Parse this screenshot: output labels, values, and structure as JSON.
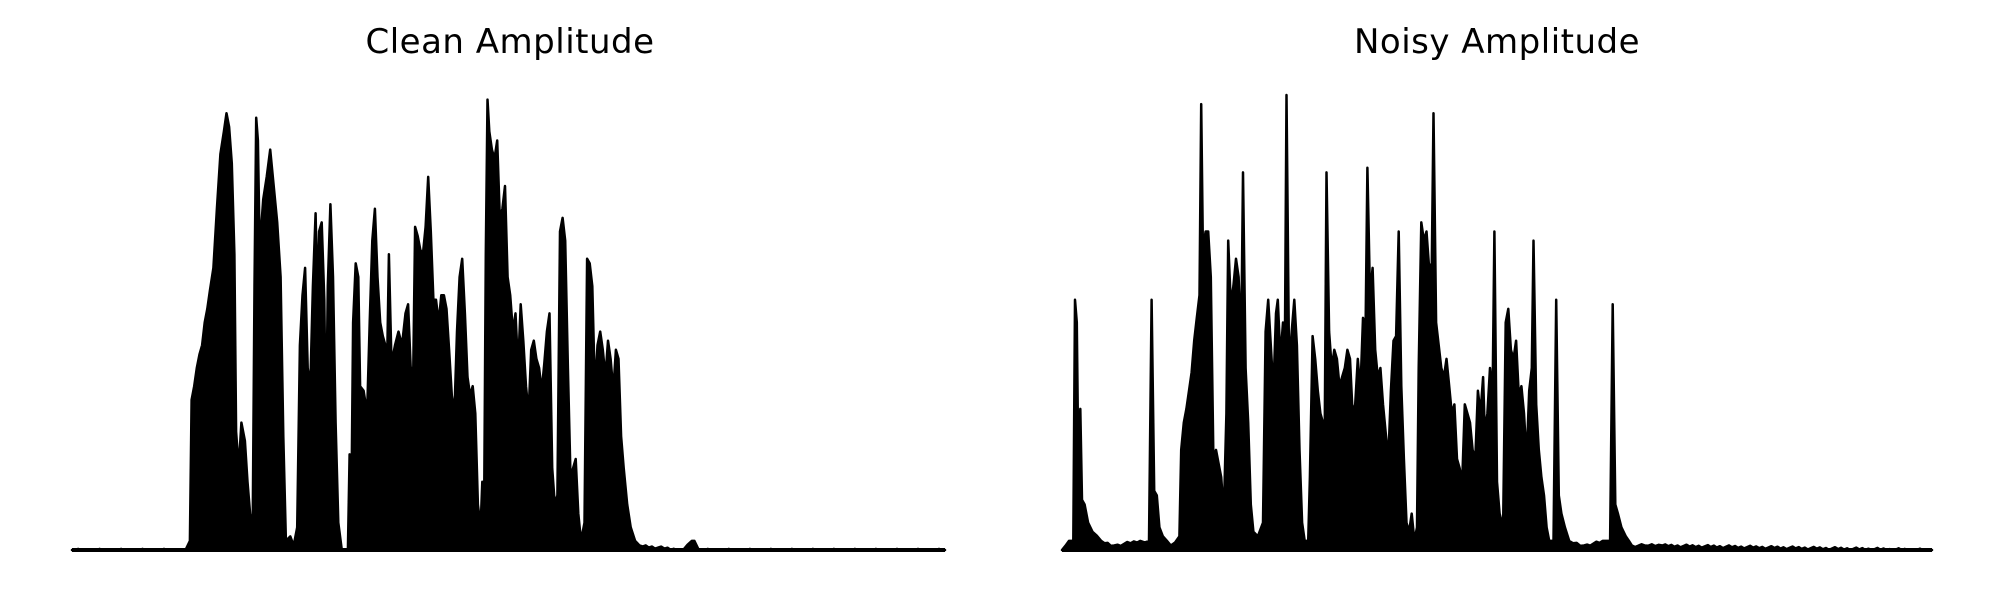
{
  "chart_data": [
    {
      "type": "area",
      "title": "Clean Amplitude",
      "xlabel": "",
      "ylabel": "",
      "axes_visible": false,
      "grid": false,
      "color": "#000000",
      "x_range": [
        0,
        1
      ],
      "ylim": [
        0,
        1
      ],
      "envelope": [
        [
          0.0,
          0.0
        ],
        [
          0.13,
          0.0
        ],
        [
          0.135,
          0.02
        ],
        [
          0.137,
          0.33
        ],
        [
          0.14,
          0.36
        ],
        [
          0.143,
          0.4
        ],
        [
          0.146,
          0.43
        ],
        [
          0.149,
          0.45
        ],
        [
          0.152,
          0.5
        ],
        [
          0.155,
          0.53
        ],
        [
          0.158,
          0.57
        ],
        [
          0.162,
          0.62
        ],
        [
          0.166,
          0.75
        ],
        [
          0.17,
          0.87
        ],
        [
          0.174,
          0.92
        ],
        [
          0.177,
          0.96
        ],
        [
          0.18,
          0.93
        ],
        [
          0.183,
          0.85
        ],
        [
          0.186,
          0.65
        ],
        [
          0.188,
          0.26
        ],
        [
          0.191,
          0.18
        ],
        [
          0.194,
          0.28
        ],
        [
          0.198,
          0.24
        ],
        [
          0.201,
          0.15
        ],
        [
          0.204,
          0.08
        ],
        [
          0.207,
          0.05
        ],
        [
          0.209,
          0.58
        ],
        [
          0.211,
          0.95
        ],
        [
          0.213,
          0.9
        ],
        [
          0.215,
          0.66
        ],
        [
          0.219,
          0.77
        ],
        [
          0.223,
          0.82
        ],
        [
          0.227,
          0.88
        ],
        [
          0.231,
          0.8
        ],
        [
          0.235,
          0.72
        ],
        [
          0.239,
          0.6
        ],
        [
          0.242,
          0.25
        ],
        [
          0.245,
          0.02
        ],
        [
          0.25,
          0.03
        ],
        [
          0.254,
          0.01
        ],
        [
          0.258,
          0.05
        ],
        [
          0.261,
          0.45
        ],
        [
          0.264,
          0.56
        ],
        [
          0.267,
          0.62
        ],
        [
          0.27,
          0.4
        ],
        [
          0.273,
          0.36
        ],
        [
          0.276,
          0.58
        ],
        [
          0.279,
          0.74
        ],
        [
          0.281,
          0.55
        ],
        [
          0.283,
          0.7
        ],
        [
          0.286,
          0.72
        ],
        [
          0.289,
          0.55
        ],
        [
          0.291,
          0.25
        ],
        [
          0.293,
          0.58
        ],
        [
          0.296,
          0.76
        ],
        [
          0.299,
          0.6
        ],
        [
          0.302,
          0.28
        ],
        [
          0.305,
          0.06
        ],
        [
          0.309,
          0.0
        ],
        [
          0.316,
          0.0
        ],
        [
          0.318,
          0.21
        ],
        [
          0.32,
          0.1
        ],
        [
          0.322,
          0.5
        ],
        [
          0.325,
          0.63
        ],
        [
          0.328,
          0.6
        ],
        [
          0.33,
          0.36
        ],
        [
          0.334,
          0.35
        ],
        [
          0.338,
          0.3
        ],
        [
          0.341,
          0.5
        ],
        [
          0.344,
          0.68
        ],
        [
          0.347,
          0.75
        ],
        [
          0.35,
          0.6
        ],
        [
          0.353,
          0.5
        ],
        [
          0.356,
          0.47
        ],
        [
          0.359,
          0.45
        ],
        [
          0.361,
          0.42
        ],
        [
          0.363,
          0.65
        ],
        [
          0.366,
          0.41
        ],
        [
          0.37,
          0.45
        ],
        [
          0.374,
          0.48
        ],
        [
          0.378,
          0.45
        ],
        [
          0.382,
          0.52
        ],
        [
          0.385,
          0.54
        ],
        [
          0.388,
          0.4
        ],
        [
          0.391,
          0.4
        ],
        [
          0.393,
          0.71
        ],
        [
          0.396,
          0.69
        ],
        [
          0.399,
          0.66
        ],
        [
          0.402,
          0.65
        ],
        [
          0.405,
          0.71
        ],
        [
          0.408,
          0.82
        ],
        [
          0.411,
          0.7
        ],
        [
          0.414,
          0.55
        ],
        [
          0.417,
          0.55
        ],
        [
          0.42,
          0.5
        ],
        [
          0.423,
          0.56
        ],
        [
          0.426,
          0.56
        ],
        [
          0.429,
          0.53
        ],
        [
          0.432,
          0.44
        ],
        [
          0.435,
          0.34
        ],
        [
          0.438,
          0.3
        ],
        [
          0.441,
          0.48
        ],
        [
          0.444,
          0.6
        ],
        [
          0.447,
          0.64
        ],
        [
          0.45,
          0.52
        ],
        [
          0.453,
          0.38
        ],
        [
          0.456,
          0.34
        ],
        [
          0.459,
          0.36
        ],
        [
          0.462,
          0.3
        ],
        [
          0.465,
          0.1
        ],
        [
          0.468,
          0.05
        ],
        [
          0.47,
          0.15
        ],
        [
          0.472,
          0.08
        ],
        [
          0.474,
          0.65
        ],
        [
          0.476,
          0.99
        ],
        [
          0.478,
          0.92
        ],
        [
          0.481,
          0.88
        ],
        [
          0.484,
          0.86
        ],
        [
          0.487,
          0.9
        ],
        [
          0.49,
          0.73
        ],
        [
          0.493,
          0.75
        ],
        [
          0.496,
          0.8
        ],
        [
          0.499,
          0.6
        ],
        [
          0.502,
          0.56
        ],
        [
          0.505,
          0.48
        ],
        [
          0.508,
          0.52
        ],
        [
          0.511,
          0.4
        ],
        [
          0.514,
          0.54
        ],
        [
          0.517,
          0.46
        ],
        [
          0.52,
          0.36
        ],
        [
          0.523,
          0.3
        ],
        [
          0.526,
          0.44
        ],
        [
          0.529,
          0.46
        ],
        [
          0.532,
          0.42
        ],
        [
          0.535,
          0.4
        ],
        [
          0.538,
          0.35
        ],
        [
          0.541,
          0.41
        ],
        [
          0.544,
          0.48
        ],
        [
          0.547,
          0.52
        ],
        [
          0.55,
          0.18
        ],
        [
          0.553,
          0.1
        ],
        [
          0.556,
          0.12
        ],
        [
          0.559,
          0.7
        ],
        [
          0.562,
          0.73
        ],
        [
          0.565,
          0.68
        ],
        [
          0.568,
          0.4
        ],
        [
          0.571,
          0.16
        ],
        [
          0.574,
          0.18
        ],
        [
          0.577,
          0.2
        ],
        [
          0.58,
          0.08
        ],
        [
          0.583,
          0.02
        ],
        [
          0.587,
          0.06
        ],
        [
          0.59,
          0.64
        ],
        [
          0.593,
          0.63
        ],
        [
          0.596,
          0.58
        ],
        [
          0.599,
          0.35
        ],
        [
          0.602,
          0.45
        ],
        [
          0.605,
          0.48
        ],
        [
          0.608,
          0.44
        ],
        [
          0.611,
          0.38
        ],
        [
          0.614,
          0.46
        ],
        [
          0.617,
          0.42
        ],
        [
          0.62,
          0.35
        ],
        [
          0.623,
          0.44
        ],
        [
          0.626,
          0.42
        ],
        [
          0.629,
          0.25
        ],
        [
          0.632,
          0.18
        ],
        [
          0.636,
          0.1
        ],
        [
          0.64,
          0.05
        ],
        [
          0.645,
          0.02
        ],
        [
          0.65,
          0.01
        ],
        [
          0.7,
          0.0
        ],
        [
          0.71,
          0.02
        ],
        [
          0.713,
          0.02
        ],
        [
          0.718,
          0.0
        ],
        [
          1.0,
          0.0
        ]
      ]
    },
    {
      "type": "area",
      "title": "Noisy Amplitude",
      "xlabel": "",
      "ylabel": "",
      "axes_visible": false,
      "grid": false,
      "color": "#000000",
      "x_range": [
        0,
        1
      ],
      "ylim": [
        0,
        1
      ],
      "envelope": [
        [
          0.0,
          0.0
        ],
        [
          0.008,
          0.02
        ],
        [
          0.013,
          0.02
        ],
        [
          0.015,
          0.55
        ],
        [
          0.017,
          0.5
        ],
        [
          0.019,
          0.15
        ],
        [
          0.021,
          0.31
        ],
        [
          0.023,
          0.11
        ],
        [
          0.026,
          0.1
        ],
        [
          0.03,
          0.06
        ],
        [
          0.035,
          0.04
        ],
        [
          0.045,
          0.02
        ],
        [
          0.06,
          0.01
        ],
        [
          0.09,
          0.02
        ],
        [
          0.1,
          0.02
        ],
        [
          0.103,
          0.55
        ],
        [
          0.106,
          0.13
        ],
        [
          0.109,
          0.12
        ],
        [
          0.112,
          0.05
        ],
        [
          0.116,
          0.03
        ],
        [
          0.125,
          0.01
        ],
        [
          0.135,
          0.03
        ],
        [
          0.137,
          0.22
        ],
        [
          0.14,
          0.28
        ],
        [
          0.143,
          0.31
        ],
        [
          0.146,
          0.35
        ],
        [
          0.149,
          0.39
        ],
        [
          0.152,
          0.46
        ],
        [
          0.155,
          0.51
        ],
        [
          0.158,
          0.56
        ],
        [
          0.16,
          0.98
        ],
        [
          0.162,
          0.66
        ],
        [
          0.165,
          0.7
        ],
        [
          0.168,
          0.7
        ],
        [
          0.171,
          0.6
        ],
        [
          0.174,
          0.2
        ],
        [
          0.177,
          0.22
        ],
        [
          0.18,
          0.19
        ],
        [
          0.183,
          0.16
        ],
        [
          0.186,
          0.08
        ],
        [
          0.189,
          0.3
        ],
        [
          0.191,
          0.68
        ],
        [
          0.194,
          0.54
        ],
        [
          0.197,
          0.58
        ],
        [
          0.2,
          0.64
        ],
        [
          0.203,
          0.6
        ],
        [
          0.206,
          0.45
        ],
        [
          0.208,
          0.83
        ],
        [
          0.211,
          0.4
        ],
        [
          0.214,
          0.28
        ],
        [
          0.217,
          0.1
        ],
        [
          0.22,
          0.04
        ],
        [
          0.225,
          0.03
        ],
        [
          0.231,
          0.06
        ],
        [
          0.234,
          0.48
        ],
        [
          0.237,
          0.55
        ],
        [
          0.24,
          0.45
        ],
        [
          0.243,
          0.35
        ],
        [
          0.246,
          0.52
        ],
        [
          0.248,
          0.55
        ],
        [
          0.251,
          0.42
        ],
        [
          0.254,
          0.5
        ],
        [
          0.256,
          0.38
        ],
        [
          0.258,
          1.0
        ],
        [
          0.261,
          0.4
        ],
        [
          0.264,
          0.48
        ],
        [
          0.267,
          0.55
        ],
        [
          0.27,
          0.45
        ],
        [
          0.273,
          0.22
        ],
        [
          0.276,
          0.06
        ],
        [
          0.279,
          0.02
        ],
        [
          0.283,
          0.02
        ],
        [
          0.285,
          0.16
        ],
        [
          0.288,
          0.47
        ],
        [
          0.291,
          0.42
        ],
        [
          0.294,
          0.35
        ],
        [
          0.297,
          0.3
        ],
        [
          0.3,
          0.28
        ],
        [
          0.302,
          0.25
        ],
        [
          0.304,
          0.83
        ],
        [
          0.307,
          0.48
        ],
        [
          0.31,
          0.4
        ],
        [
          0.313,
          0.44
        ],
        [
          0.316,
          0.42
        ],
        [
          0.319,
          0.36
        ],
        [
          0.322,
          0.38
        ],
        [
          0.325,
          0.4
        ],
        [
          0.328,
          0.44
        ],
        [
          0.331,
          0.42
        ],
        [
          0.334,
          0.3
        ],
        [
          0.337,
          0.32
        ],
        [
          0.34,
          0.42
        ],
        [
          0.343,
          0.35
        ],
        [
          0.346,
          0.51
        ],
        [
          0.349,
          0.49
        ],
        [
          0.351,
          0.84
        ],
        [
          0.354,
          0.56
        ],
        [
          0.357,
          0.62
        ],
        [
          0.36,
          0.44
        ],
        [
          0.363,
          0.38
        ],
        [
          0.366,
          0.4
        ],
        [
          0.369,
          0.32
        ],
        [
          0.372,
          0.26
        ],
        [
          0.375,
          0.2
        ],
        [
          0.378,
          0.35
        ],
        [
          0.381,
          0.46
        ],
        [
          0.384,
          0.47
        ],
        [
          0.387,
          0.7
        ],
        [
          0.39,
          0.36
        ],
        [
          0.393,
          0.2
        ],
        [
          0.396,
          0.06
        ],
        [
          0.399,
          0.04
        ],
        [
          0.402,
          0.08
        ],
        [
          0.405,
          0.02
        ],
        [
          0.408,
          0.05
        ],
        [
          0.41,
          0.4
        ],
        [
          0.413,
          0.72
        ],
        [
          0.416,
          0.68
        ],
        [
          0.419,
          0.7
        ],
        [
          0.422,
          0.62
        ],
        [
          0.425,
          0.63
        ],
        [
          0.427,
          0.96
        ],
        [
          0.43,
          0.5
        ],
        [
          0.433,
          0.45
        ],
        [
          0.436,
          0.4
        ],
        [
          0.439,
          0.38
        ],
        [
          0.442,
          0.42
        ],
        [
          0.445,
          0.36
        ],
        [
          0.448,
          0.3
        ],
        [
          0.451,
          0.32
        ],
        [
          0.454,
          0.2
        ],
        [
          0.457,
          0.18
        ],
        [
          0.46,
          0.15
        ],
        [
          0.463,
          0.32
        ],
        [
          0.466,
          0.3
        ],
        [
          0.469,
          0.28
        ],
        [
          0.472,
          0.22
        ],
        [
          0.475,
          0.2
        ],
        [
          0.478,
          0.35
        ],
        [
          0.481,
          0.3
        ],
        [
          0.484,
          0.38
        ],
        [
          0.486,
          0.26
        ],
        [
          0.489,
          0.3
        ],
        [
          0.492,
          0.4
        ],
        [
          0.495,
          0.34
        ],
        [
          0.497,
          0.7
        ],
        [
          0.5,
          0.15
        ],
        [
          0.503,
          0.08
        ],
        [
          0.507,
          0.05
        ],
        [
          0.51,
          0.5
        ],
        [
          0.513,
          0.53
        ],
        [
          0.516,
          0.44
        ],
        [
          0.519,
          0.42
        ],
        [
          0.522,
          0.46
        ],
        [
          0.525,
          0.34
        ],
        [
          0.528,
          0.36
        ],
        [
          0.531,
          0.3
        ],
        [
          0.534,
          0.2
        ],
        [
          0.537,
          0.35
        ],
        [
          0.54,
          0.4
        ],
        [
          0.542,
          0.68
        ],
        [
          0.545,
          0.32
        ],
        [
          0.548,
          0.22
        ],
        [
          0.551,
          0.16
        ],
        [
          0.554,
          0.12
        ],
        [
          0.557,
          0.05
        ],
        [
          0.56,
          0.02
        ],
        [
          0.565,
          0.02
        ],
        [
          0.568,
          0.55
        ],
        [
          0.571,
          0.12
        ],
        [
          0.574,
          0.08
        ],
        [
          0.578,
          0.05
        ],
        [
          0.583,
          0.02
        ],
        [
          0.6,
          0.01
        ],
        [
          0.625,
          0.02
        ],
        [
          0.63,
          0.02
        ],
        [
          0.633,
          0.54
        ],
        [
          0.636,
          0.1
        ],
        [
          0.639,
          0.08
        ],
        [
          0.643,
          0.05
        ],
        [
          0.648,
          0.03
        ],
        [
          0.655,
          0.01
        ],
        [
          0.67,
          0.01
        ],
        [
          0.69,
          0.01
        ],
        [
          1.0,
          0.0
        ]
      ]
    }
  ]
}
